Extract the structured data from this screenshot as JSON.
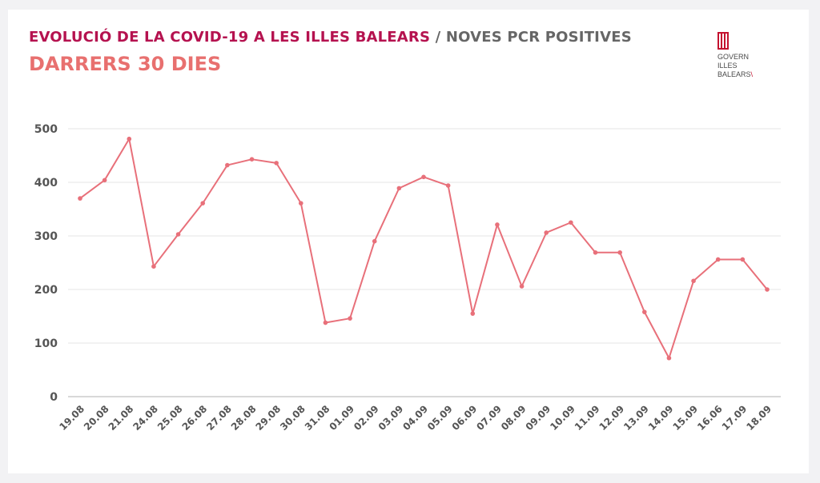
{
  "header": {
    "title": "EVOLUCIÓ DE LA COVID-19 A LES ILLES BALEARS",
    "separator": "/",
    "title_rest": "NOVES PCR POSITIVES",
    "subtitle": "DARRERS 30 DIES"
  },
  "logo": {
    "line1": "GOVERN",
    "line2": "ILLES",
    "line3": "BALEARS",
    "icon": "govern-illes-balears-logo-icon"
  },
  "colors": {
    "title": "#b5124f",
    "subtitle": "#e8706f",
    "line": "#e8707a",
    "grid": "#e6e6e6",
    "axis": "#cccccc"
  },
  "chart_data": {
    "type": "line",
    "title": "EVOLUCIÓ DE LA COVID-19 A LES ILLES BALEARS / NOVES PCR POSITIVES",
    "subtitle": "DARRERS 30 DIES",
    "categories": [
      "19.08",
      "20.08",
      "21.08",
      "24.08",
      "25.08",
      "26.08",
      "27.08",
      "28.08",
      "29.08",
      "30.08",
      "31.08",
      "01.09",
      "02.09",
      "03.09",
      "04.09",
      "05.09",
      "06.09",
      "07.09",
      "08.09",
      "09.09",
      "10.09",
      "11.09",
      "12.09",
      "13.09",
      "14.09",
      "15.09",
      "16.06",
      "17.09",
      "18.09"
    ],
    "series": [
      {
        "values": [
          370,
          404,
          481,
          243,
          303,
          361,
          432,
          443,
          436,
          361,
          138,
          146,
          290,
          389,
          410,
          394,
          155,
          321,
          206,
          306,
          325,
          269,
          269,
          158,
          72,
          216,
          256,
          256,
          200
        ]
      }
    ],
    "yticks": [
      "0",
      "100",
      "200",
      "300",
      "400",
      "500"
    ],
    "ylim": [
      0,
      500
    ],
    "xlabel": "",
    "ylabel": "",
    "grid": true,
    "legend": "none"
  }
}
